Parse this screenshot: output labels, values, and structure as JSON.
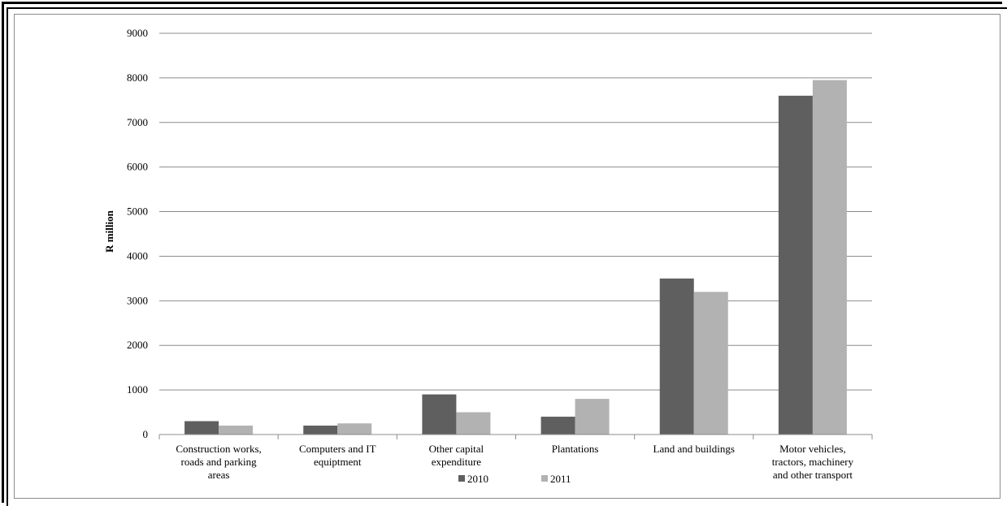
{
  "chart_data": {
    "type": "bar",
    "title": "",
    "xlabel": "",
    "ylabel": "R million",
    "ylim": [
      0,
      9000
    ],
    "yticks": [
      0,
      1000,
      2000,
      3000,
      4000,
      5000,
      6000,
      7000,
      8000,
      9000
    ],
    "grid": true,
    "legend_position": "bottom",
    "categories": [
      [
        "Construction works,",
        "roads and parking",
        "areas"
      ],
      [
        "Computers and IT",
        "equiptment"
      ],
      [
        "Other capital",
        "expenditure"
      ],
      [
        "Plantations"
      ],
      [
        "Land and buildings"
      ],
      [
        "Motor vehicles,",
        "tractors, machinery",
        "and other transport"
      ]
    ],
    "series": [
      {
        "name": "2010",
        "color": "#5f5f5f",
        "values": [
          300,
          200,
          900,
          400,
          3500,
          7600
        ]
      },
      {
        "name": "2011",
        "color": "#b2b2b2",
        "values": [
          200,
          250,
          500,
          800,
          3200,
          7950
        ]
      }
    ]
  }
}
